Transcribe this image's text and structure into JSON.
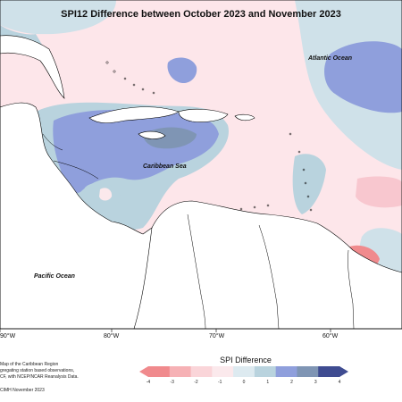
{
  "title": "SPI12 Difference between October 2023 and November 2023",
  "ocean_labels": {
    "atlantic": "Atlantic Ocean",
    "caribbean": "Caribbean Sea",
    "pacific": "Pacific Ocean"
  },
  "longitude_labels": [
    "90°W",
    "80°W",
    "70°W",
    "60°W"
  ],
  "notes": {
    "line1": "Map of the Caribbean Region",
    "line2": "gregating station based observations,",
    "line3": "CF, with NCEP/NCAR Reanalysis Data.",
    "credit": "CIMH November 2023"
  },
  "legend": {
    "title": "SPI Difference",
    "ticks": [
      "-4",
      "-3",
      "-2",
      "-1",
      "0",
      "1",
      "2",
      "3",
      "4"
    ],
    "colors": [
      "#f08a8d",
      "#f6b1b5",
      "#fad5d9",
      "#fbe9ec",
      "#ddeaf0",
      "#b9d3de",
      "#8f9fdc",
      "#7f95b4",
      "#3f4c91"
    ]
  },
  "colors": {
    "land": "#ffffff",
    "coast": "#000000",
    "dry_light": "#fde6ea",
    "dry_mid": "#f8c7cf",
    "dry_strong": "#f08a8d",
    "wet_light": "#cfe1e9",
    "wet_mid": "#8f9fdc",
    "wet_strong": "#7f95b4"
  }
}
